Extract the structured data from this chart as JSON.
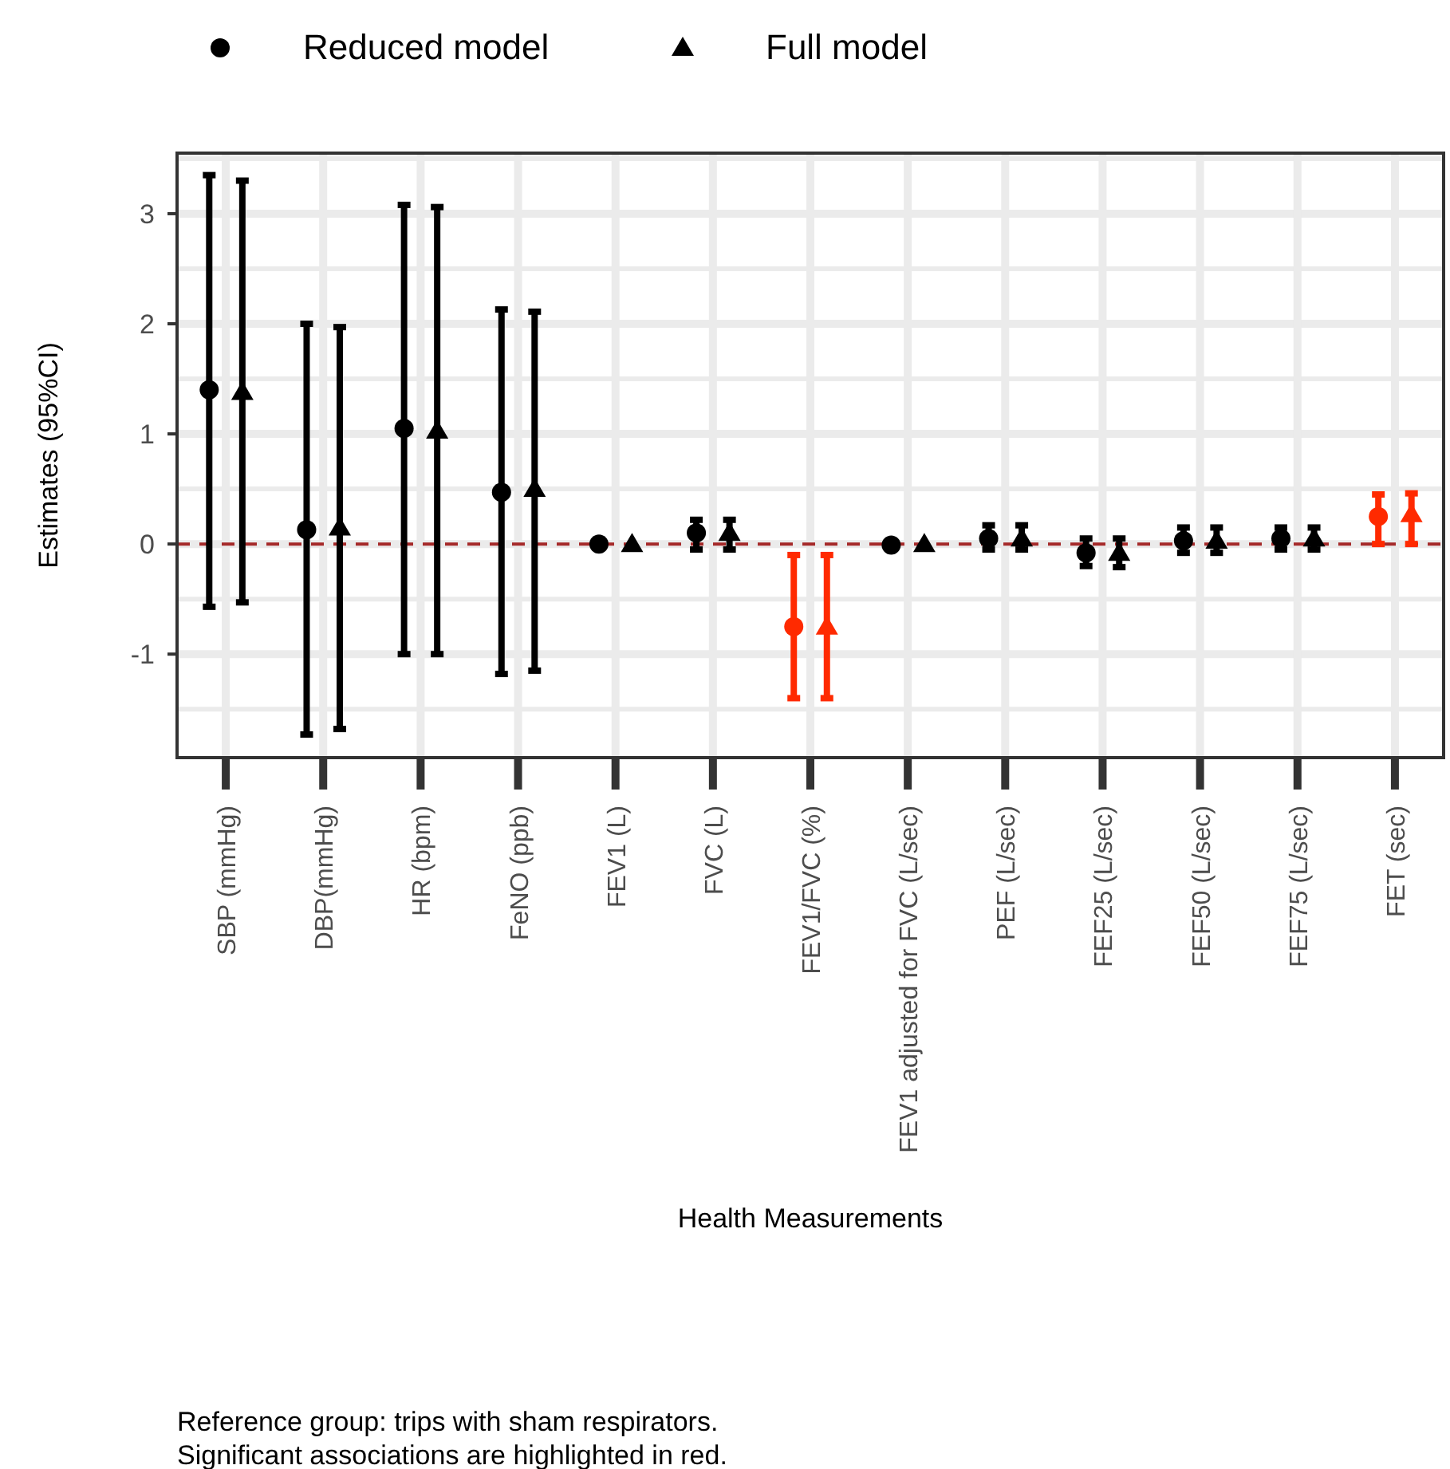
{
  "chart_data": {
    "type": "scatter",
    "categories": [
      "SBP (mmHg)",
      "DBP(mmHg)",
      "HR (bpm)",
      "FeNO (ppb)",
      "FEV1 (L)",
      "FVC (L)",
      "FEV1/FVC (%)",
      "FEV1 adjusted for FVC (L/sec)",
      "PEF (L/sec)",
      "FEF25 (L/sec)",
      "FEF50 (L/sec)",
      "FEF75 (L/sec)",
      "FET (sec)"
    ],
    "series": [
      {
        "name": "Reduced model",
        "marker": "circle",
        "values": [
          1.4,
          0.13,
          1.05,
          0.47,
          0.0,
          0.1,
          -0.75,
          -0.01,
          0.05,
          -0.08,
          0.03,
          0.05,
          0.25
        ],
        "errors": [
          [
            -0.57,
            3.35
          ],
          [
            -1.73,
            2.0
          ],
          [
            -1.0,
            3.08
          ],
          [
            -1.18,
            2.13
          ],
          null,
          [
            -0.05,
            0.22
          ],
          [
            -1.4,
            -0.1
          ],
          null,
          [
            -0.05,
            0.17
          ],
          [
            -0.2,
            0.05
          ],
          [
            -0.08,
            0.15
          ],
          [
            -0.05,
            0.15
          ],
          [
            0.0,
            0.45
          ]
        ],
        "colors": [
          "#000000",
          "#000000",
          "#000000",
          "#000000",
          "#000000",
          "#000000",
          "#ff2a00",
          "#000000",
          "#000000",
          "#000000",
          "#000000",
          "#000000",
          "#ff2a00"
        ]
      },
      {
        "name": "Full model",
        "marker": "triangle",
        "values": [
          1.38,
          0.15,
          1.03,
          0.5,
          0.0,
          0.1,
          -0.75,
          0.0,
          0.05,
          -0.08,
          0.03,
          0.05,
          0.27
        ],
        "errors": [
          [
            -0.53,
            3.3
          ],
          [
            -1.68,
            1.97
          ],
          [
            -1.0,
            3.06
          ],
          [
            -1.15,
            2.11
          ],
          null,
          [
            -0.05,
            0.22
          ],
          [
            -1.4,
            -0.1
          ],
          null,
          [
            -0.05,
            0.17
          ],
          [
            -0.21,
            0.05
          ],
          [
            -0.08,
            0.15
          ],
          [
            -0.05,
            0.15
          ],
          [
            0.0,
            0.46
          ]
        ],
        "colors": [
          "#000000",
          "#000000",
          "#000000",
          "#000000",
          "#000000",
          "#000000",
          "#ff2a00",
          "#000000",
          "#000000",
          "#000000",
          "#000000",
          "#000000",
          "#ff2a00"
        ]
      }
    ],
    "xlabel": "Health Measurements",
    "ylabel": "Estimates (95%CI)",
    "ylim": [
      -1.94,
      3.55
    ],
    "yticks": [
      -1,
      0,
      1,
      2,
      3
    ],
    "grid": true,
    "legend": "top",
    "ref_lines": [
      {
        "axis": "y",
        "value": 0,
        "color": "#a52a2a",
        "line_style": "dashed"
      }
    ],
    "annotations": [
      "Reference group: trips with sham respirators.",
      "Significant associations are highlighted in red."
    ]
  }
}
